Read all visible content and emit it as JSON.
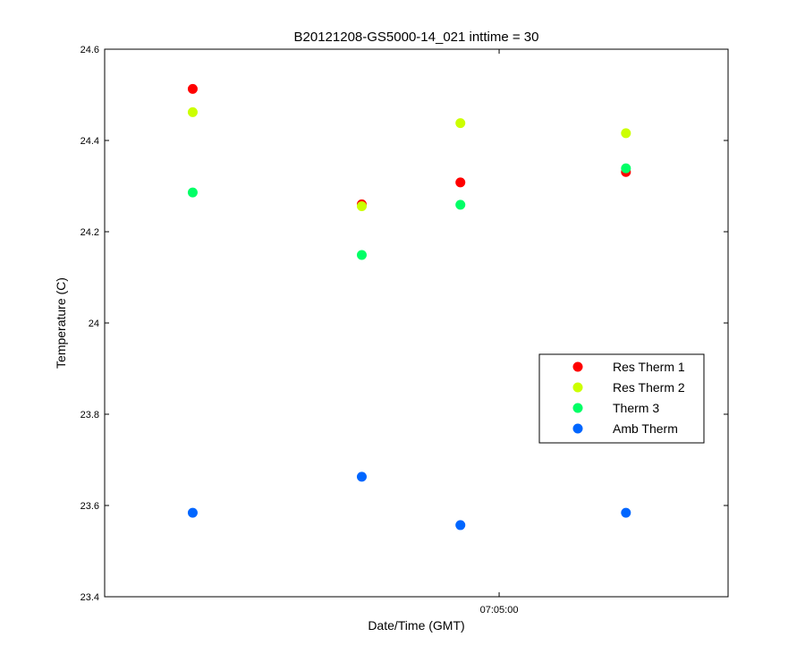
{
  "chart_data": {
    "type": "scatter",
    "title": "B20121208-GS5000-14_021 inttime = 30",
    "xlabel": "Date/Time (GMT)",
    "ylabel": "Temperature (C)",
    "ylim": [
      23.4,
      24.6
    ],
    "yticks": [
      23.4,
      23.6,
      23.8,
      24,
      24.2,
      24.4,
      24.6
    ],
    "ytick_labels": [
      "23.4",
      "23.6",
      "23.8",
      "24",
      "24.2",
      "24.4",
      "24.6"
    ],
    "xlim": [
      "07:03:08",
      "07:06:05"
    ],
    "xticks": [
      "07:05:00"
    ],
    "xtick_labels": [
      "07:05:00"
    ],
    "x": [
      "07:03:33",
      "07:04:21",
      "07:04:49",
      "07:05:36"
    ],
    "grid": false,
    "legend_position": "right",
    "series": [
      {
        "name": "Res Therm 1",
        "color": "#ff0000",
        "values": [
          24.513,
          24.26,
          24.308,
          24.331
        ]
      },
      {
        "name": "Res Therm 2",
        "color": "#ccff00",
        "values": [
          24.462,
          24.256,
          24.438,
          24.416
        ]
      },
      {
        "name": "Therm 3",
        "color": "#00ff66",
        "values": [
          24.286,
          24.149,
          24.259,
          24.339
        ]
      },
      {
        "name": "Amb Therm",
        "color": "#0066ff",
        "values": [
          23.584,
          23.663,
          23.557,
          23.584
        ]
      }
    ]
  }
}
